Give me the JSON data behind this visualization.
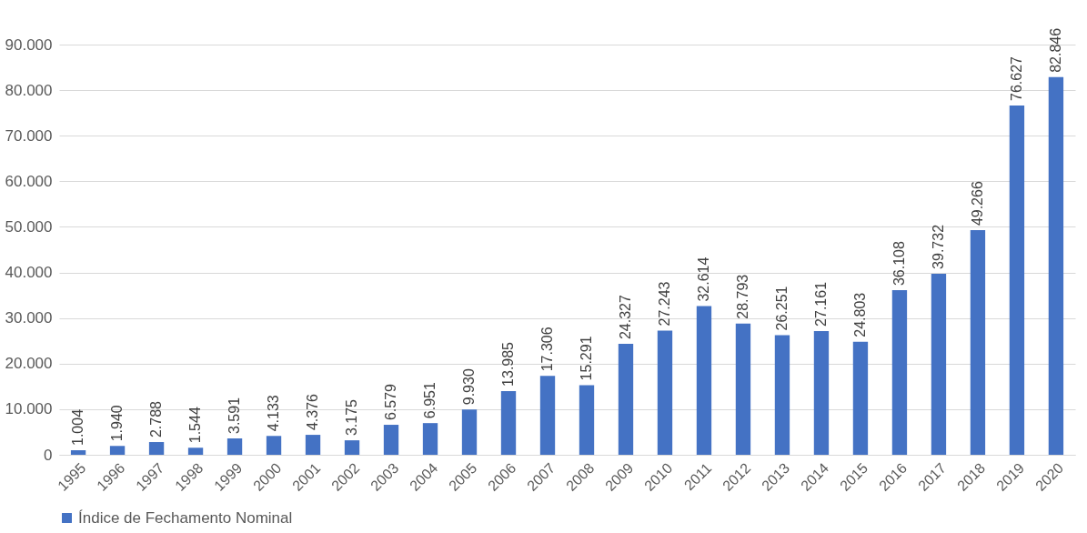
{
  "chart_data": {
    "type": "bar",
    "categories": [
      "1995",
      "1996",
      "1997",
      "1998",
      "1999",
      "2000",
      "2001",
      "2002",
      "2003",
      "2004",
      "2005",
      "2006",
      "2007",
      "2008",
      "2009",
      "2010",
      "2011",
      "2012",
      "2013",
      "2014",
      "2015",
      "2016",
      "2017",
      "2018",
      "2019",
      "2020"
    ],
    "series": [
      {
        "name": "Índice de Fechamento Nominal",
        "color": "#4472c4",
        "values": [
          1004,
          1940,
          2788,
          1544,
          3591,
          4133,
          4376,
          3175,
          6579,
          6951,
          9930,
          13985,
          17306,
          15291,
          24327,
          27243,
          32614,
          28793,
          26251,
          27161,
          24803,
          36108,
          39732,
          49266,
          76627,
          82846
        ],
        "value_labels": [
          "1.004",
          "1.940",
          "2.788",
          "1.544",
          "3.591",
          "4.133",
          "4.376",
          "3.175",
          "6.579",
          "6.951",
          "9.930",
          "13.985",
          "17.306",
          "15.291",
          "24.327",
          "27.243",
          "32.614",
          "28.793",
          "26.251",
          "27.161",
          "24.803",
          "36.108",
          "39.732",
          "49.266",
          "76.627",
          "82.846"
        ]
      }
    ],
    "ylim": [
      0,
      90000
    ],
    "yticks": [
      0,
      {
        "value": 10000,
        "label": "10.000"
      },
      {
        "value": 20000,
        "label": "20.000"
      },
      {
        "value": 30000,
        "label": "30.000"
      },
      {
        "value": 40000,
        "label": "40.000"
      },
      {
        "value": 50000,
        "label": "50.000"
      },
      {
        "value": 60000,
        "label": "60.000"
      },
      {
        "value": 70000,
        "label": "70.000"
      },
      {
        "value": 80000,
        "label": "80.000"
      },
      {
        "value": 90000,
        "label": "90.000"
      }
    ],
    "grid": "y",
    "legend": "bottom"
  }
}
